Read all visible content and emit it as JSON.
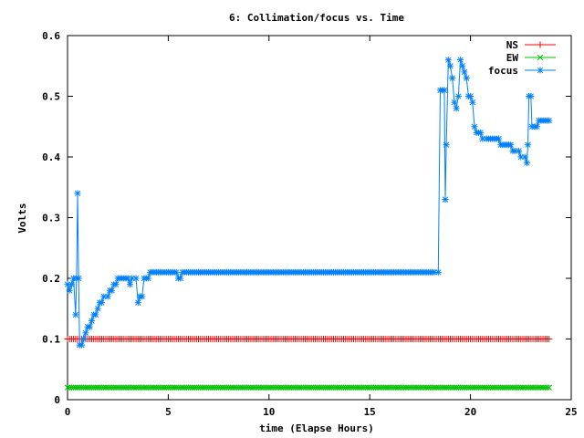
{
  "chart_data": {
    "type": "line",
    "title": "6: Collimation/focus vs. Time",
    "xlabel": "time (Elapse Hours)",
    "ylabel": "Volts",
    "xlim": [
      0,
      25
    ],
    "ylim": [
      0,
      0.6
    ],
    "xticks": [
      0,
      5,
      10,
      15,
      20,
      25
    ],
    "xtick_labels": [
      "0",
      "5",
      "10",
      "15",
      "20",
      "25"
    ],
    "yticks": [
      0,
      0.1,
      0.2,
      0.3,
      0.4,
      0.5,
      0.6
    ],
    "ytick_labels": [
      "0",
      "0.1",
      "0.2",
      "0.3",
      "0.4",
      "0.5",
      "0.6"
    ],
    "grid": false,
    "legend_position": "top-right",
    "series": [
      {
        "name": "NS",
        "color": "#ff0000",
        "marker": "plus",
        "segments": [
          {
            "x_start": 0,
            "x_end": 23.9,
            "y": 0.1
          }
        ]
      },
      {
        "name": "EW",
        "color": "#00c000",
        "marker": "cross",
        "segments": [
          {
            "x_start": 0,
            "x_end": 23.9,
            "y": 0.02
          }
        ]
      },
      {
        "name": "focus",
        "color": "#0080ff",
        "marker": "star",
        "points": [
          [
            0.0,
            0.19
          ],
          [
            0.1,
            0.18
          ],
          [
            0.2,
            0.19
          ],
          [
            0.3,
            0.2
          ],
          [
            0.4,
            0.14
          ],
          [
            0.45,
            0.2
          ],
          [
            0.5,
            0.34
          ],
          [
            0.55,
            0.2
          ],
          [
            0.6,
            0.09
          ],
          [
            0.7,
            0.09
          ],
          [
            0.8,
            0.1
          ],
          [
            0.9,
            0.11
          ],
          [
            1.0,
            0.12
          ],
          [
            1.1,
            0.12
          ],
          [
            1.2,
            0.13
          ],
          [
            1.3,
            0.14
          ],
          [
            1.4,
            0.14
          ],
          [
            1.5,
            0.15
          ],
          [
            1.6,
            0.16
          ],
          [
            1.7,
            0.16
          ],
          [
            1.8,
            0.17
          ],
          [
            2.0,
            0.17
          ],
          [
            2.1,
            0.18
          ],
          [
            2.2,
            0.18
          ],
          [
            2.3,
            0.19
          ],
          [
            2.4,
            0.19
          ],
          [
            2.5,
            0.2
          ],
          [
            3.0,
            0.2
          ],
          [
            3.1,
            0.19
          ],
          [
            3.2,
            0.2
          ],
          [
            3.4,
            0.2
          ],
          [
            3.5,
            0.16
          ],
          [
            3.6,
            0.17
          ],
          [
            3.7,
            0.17
          ],
          [
            3.8,
            0.2
          ],
          [
            4.0,
            0.2
          ],
          [
            4.1,
            0.21
          ],
          [
            5.4,
            0.21
          ],
          [
            5.5,
            0.2
          ],
          [
            5.6,
            0.2
          ],
          [
            5.7,
            0.21
          ],
          [
            18.4,
            0.21
          ],
          [
            18.5,
            0.51
          ],
          [
            18.6,
            0.51
          ],
          [
            18.7,
            0.51
          ],
          [
            18.75,
            0.33
          ],
          [
            18.8,
            0.42
          ],
          [
            18.9,
            0.56
          ],
          [
            19.0,
            0.55
          ],
          [
            19.1,
            0.53
          ],
          [
            19.2,
            0.49
          ],
          [
            19.3,
            0.48
          ],
          [
            19.4,
            0.5
          ],
          [
            19.5,
            0.56
          ],
          [
            19.6,
            0.55
          ],
          [
            19.7,
            0.54
          ],
          [
            19.8,
            0.53
          ],
          [
            19.9,
            0.5
          ],
          [
            20.0,
            0.5
          ],
          [
            20.1,
            0.49
          ],
          [
            20.2,
            0.45
          ],
          [
            20.3,
            0.44
          ],
          [
            20.4,
            0.44
          ],
          [
            20.5,
            0.44
          ],
          [
            20.6,
            0.43
          ],
          [
            20.8,
            0.43
          ],
          [
            20.9,
            0.43
          ],
          [
            21.4,
            0.43
          ],
          [
            21.5,
            0.42
          ],
          [
            22.0,
            0.42
          ],
          [
            22.1,
            0.41
          ],
          [
            22.4,
            0.41
          ],
          [
            22.5,
            0.4
          ],
          [
            22.7,
            0.4
          ],
          [
            22.8,
            0.39
          ],
          [
            22.85,
            0.42
          ],
          [
            22.9,
            0.5
          ],
          [
            23.0,
            0.5
          ],
          [
            23.05,
            0.45
          ],
          [
            23.2,
            0.45
          ],
          [
            23.3,
            0.45
          ],
          [
            23.4,
            0.46
          ],
          [
            23.9,
            0.46
          ]
        ]
      }
    ]
  }
}
